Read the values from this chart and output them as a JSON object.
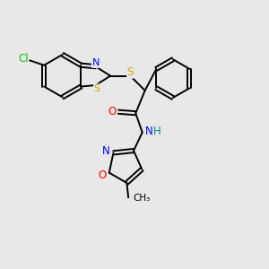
{
  "background_color": "#e8e8e8",
  "atom_colors": {
    "C": "#000000",
    "N": "#0000ff",
    "O": "#ff0000",
    "S": "#ccaa00",
    "Cl": "#00cc00",
    "H": "#008888"
  }
}
